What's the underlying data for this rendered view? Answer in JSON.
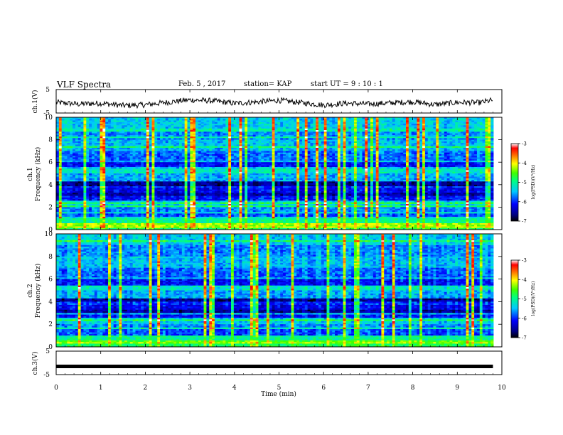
{
  "header": {
    "title": "VLF Spectra",
    "date": "Feb. 5  , 2017",
    "station": "station= KAP",
    "start_ut": "start  UT =   9 : 10 : 1"
  },
  "chart_data": [
    {
      "type": "line",
      "panel": "ch1-waveform",
      "ylabel": "ch.1(V)",
      "y_ticks": [
        "5",
        "-5"
      ],
      "ylim": [
        -5,
        5
      ],
      "x": [
        0,
        0.5,
        1,
        1.5,
        2,
        2.5,
        3,
        3.5,
        4,
        4.5,
        5,
        5.5,
        6,
        6.5,
        7,
        7.5,
        8,
        8.5,
        9,
        9.5,
        9.8
      ],
      "values": [
        -0.5,
        -1.2,
        -0.8,
        -1.8,
        -1.5,
        -0.4,
        0.6,
        0.2,
        -0.9,
        -0.3,
        0.4,
        -0.6,
        -1.6,
        -0.8,
        -1.2,
        -0.7,
        -0.2,
        -1.4,
        -0.5,
        -0.6,
        0.5
      ]
    },
    {
      "type": "heatmap",
      "panel": "ch1-spectrogram",
      "ylabel_top": "ch.1",
      "ylabel": "Frequency (kHz)",
      "y_ticks": [
        "0",
        "2",
        "4",
        "6",
        "8",
        "10"
      ],
      "ylim": [
        0,
        10
      ],
      "colorbar_label": "log(PSD)(V²/Hz)",
      "colorbar_ticks": [
        "-3",
        "-4",
        "-5",
        "-6",
        "-7"
      ],
      "colorbar_range": [
        -7,
        -3
      ]
    },
    {
      "type": "heatmap",
      "panel": "ch2-spectrogram",
      "ylabel_top": "ch.2",
      "ylabel": "Frequency (kHz)",
      "y_ticks": [
        "0",
        "2",
        "4",
        "6",
        "8",
        "10"
      ],
      "ylim": [
        0,
        10
      ],
      "colorbar_label": "log(PSD)(V²/Hz)",
      "colorbar_ticks": [
        "-3",
        "-4",
        "-5",
        "-6",
        "-7"
      ],
      "colorbar_range": [
        -7,
        -3
      ]
    },
    {
      "type": "line",
      "panel": "ch3-waveform",
      "ylabel": "ch.3(V)",
      "y_ticks": [
        "5",
        "-5"
      ],
      "ylim": [
        -5,
        5
      ],
      "x": [
        0,
        9.8
      ],
      "values": [
        -1.5,
        -1.5
      ]
    }
  ],
  "x_axis": {
    "label": "Time (min)",
    "ticks": [
      "0",
      "1",
      "2",
      "3",
      "4",
      "5",
      "6",
      "7",
      "8",
      "9",
      "10"
    ],
    "xlim": [
      0,
      10
    ]
  }
}
